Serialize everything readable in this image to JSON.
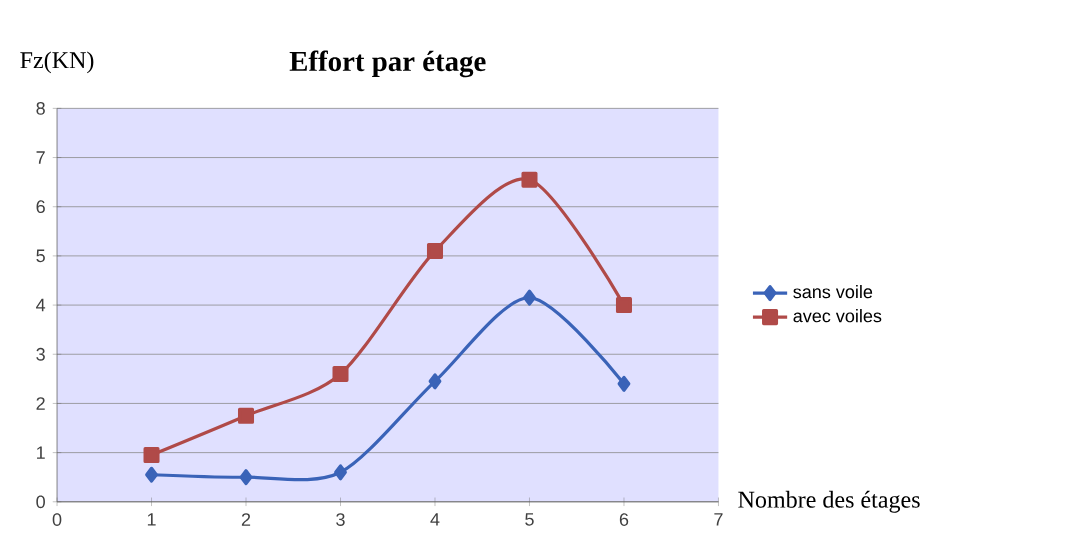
{
  "chart_data": {
    "type": "line",
    "title": "Effort par étage",
    "xlabel": "Nombre des étages",
    "ylabel": "Fz(KN)",
    "x": [
      1,
      2,
      3,
      4,
      5,
      6
    ],
    "series": [
      {
        "name": "sans voile",
        "color": "#3a63b8",
        "marker": "diamond",
        "values": [
          0.55,
          0.5,
          0.6,
          2.45,
          4.15,
          2.4
        ]
      },
      {
        "name": "avec voiles",
        "color": "#b04a48",
        "marker": "square",
        "values": [
          0.95,
          1.75,
          2.6,
          5.1,
          6.55,
          4.0
        ]
      }
    ],
    "xlim": [
      0,
      7
    ],
    "xticks": [
      0,
      1,
      2,
      3,
      4,
      5,
      6,
      7
    ],
    "ylim": [
      0,
      8
    ],
    "yticks": [
      0,
      1,
      2,
      3,
      4,
      5,
      6,
      7,
      8
    ],
    "grid": "y",
    "legend": "right"
  }
}
